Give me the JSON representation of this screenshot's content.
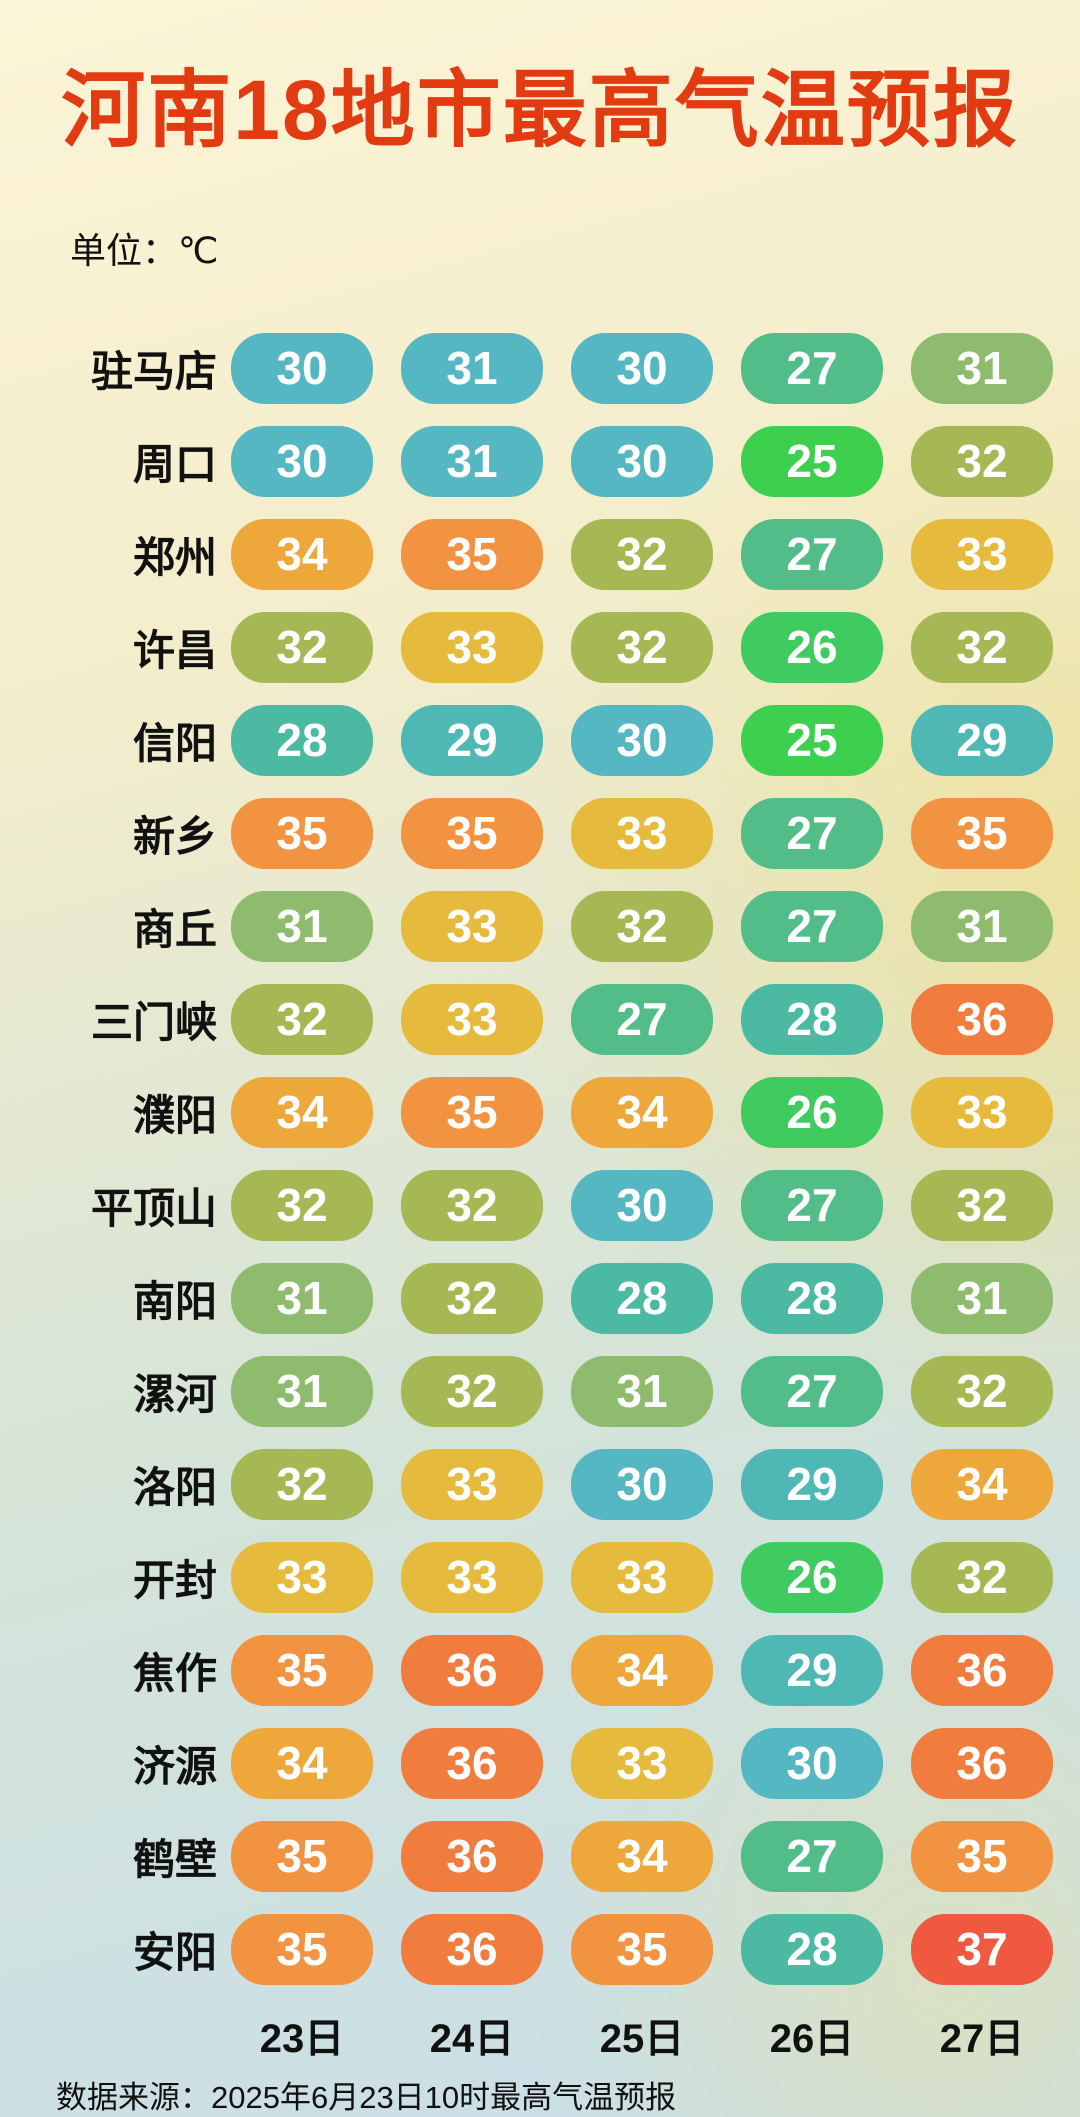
{
  "title": "河南18地市最高气温预报",
  "unit_label": "单位：℃",
  "source_label": "数据来源：2025年6月23日10时最高气温预报",
  "title_color": "#E23B12",
  "chart_data": {
    "type": "heatmap",
    "title": "河南18地市最高气温预报",
    "unit": "℃",
    "x": [
      "23日",
      "24日",
      "25日",
      "26日",
      "27日"
    ],
    "value_color_scale": {
      "25": "#3DD04E",
      "26": "#3FCB60",
      "27": "#52BD88",
      "28": "#4CBAA3",
      "29": "#4FB8B4",
      "30": "#55B7C1",
      "31": "#8EBB6D",
      "32": "#A5B854",
      "33": "#E6BA3C",
      "34": "#EEA73A",
      "35": "#F29341",
      "36": "#F07D3D",
      "37": "#EE5940"
    },
    "rows": [
      {
        "city": "驻马店",
        "values": [
          30,
          31,
          30,
          27,
          31
        ],
        "colors": [
          "#55B7C1",
          "#55B7C1",
          "#55B7C1",
          "#52BD88",
          "#8EBB6D"
        ]
      },
      {
        "city": "周口",
        "values": [
          30,
          31,
          30,
          25,
          32
        ],
        "colors": [
          "#55B7C1",
          "#55B7C1",
          "#55B7C1",
          "#3DD04E",
          "#A5B854"
        ]
      },
      {
        "city": "郑州",
        "values": [
          34,
          35,
          32,
          27,
          33
        ],
        "colors": [
          "#EEA73A",
          "#F29341",
          "#A5B854",
          "#52BD88",
          "#E6BA3C"
        ]
      },
      {
        "city": "许昌",
        "values": [
          32,
          33,
          32,
          26,
          32
        ],
        "colors": [
          "#A5B854",
          "#E6BA3C",
          "#A5B854",
          "#3FCB60",
          "#A5B854"
        ]
      },
      {
        "city": "信阳",
        "values": [
          28,
          29,
          30,
          25,
          29
        ],
        "colors": [
          "#4CBAA3",
          "#4FB8B4",
          "#55B7C1",
          "#3DD04E",
          "#4FB8B4"
        ]
      },
      {
        "city": "新乡",
        "values": [
          35,
          35,
          33,
          27,
          35
        ],
        "colors": [
          "#F29341",
          "#F29341",
          "#E6BA3C",
          "#52BD88",
          "#F29341"
        ]
      },
      {
        "city": "商丘",
        "values": [
          31,
          33,
          32,
          27,
          31
        ],
        "colors": [
          "#8EBB6D",
          "#E6BA3C",
          "#A5B854",
          "#52BD88",
          "#8EBB6D"
        ]
      },
      {
        "city": "三门峡",
        "values": [
          32,
          33,
          27,
          28,
          36
        ],
        "colors": [
          "#A5B854",
          "#E6BA3C",
          "#52BD88",
          "#4CBAA3",
          "#F07D3D"
        ]
      },
      {
        "city": "濮阳",
        "values": [
          34,
          35,
          34,
          26,
          33
        ],
        "colors": [
          "#EEA73A",
          "#F29341",
          "#EEA73A",
          "#3FCB60",
          "#E6BA3C"
        ]
      },
      {
        "city": "平顶山",
        "values": [
          32,
          32,
          30,
          27,
          32
        ],
        "colors": [
          "#A5B854",
          "#A5B854",
          "#55B7C1",
          "#52BD88",
          "#A5B854"
        ]
      },
      {
        "city": "南阳",
        "values": [
          31,
          32,
          28,
          28,
          31
        ],
        "colors": [
          "#8EBB6D",
          "#A5B854",
          "#4CBAA3",
          "#4CBAA3",
          "#8EBB6D"
        ]
      },
      {
        "city": "漯河",
        "values": [
          31,
          32,
          31,
          27,
          32
        ],
        "colors": [
          "#8EBB6D",
          "#A5B854",
          "#8EBB6D",
          "#52BD88",
          "#A5B854"
        ]
      },
      {
        "city": "洛阳",
        "values": [
          32,
          33,
          30,
          29,
          34
        ],
        "colors": [
          "#A5B854",
          "#E6BA3C",
          "#55B7C1",
          "#4FB8B4",
          "#EEA73A"
        ]
      },
      {
        "city": "开封",
        "values": [
          33,
          33,
          33,
          26,
          32
        ],
        "colors": [
          "#E6BA3C",
          "#E6BA3C",
          "#E6BA3C",
          "#3FCB60",
          "#A5B854"
        ]
      },
      {
        "city": "焦作",
        "values": [
          35,
          36,
          34,
          29,
          36
        ],
        "colors": [
          "#F29341",
          "#F07D3D",
          "#EEA73A",
          "#4FB8B4",
          "#F07D3D"
        ]
      },
      {
        "city": "济源",
        "values": [
          34,
          36,
          33,
          30,
          36
        ],
        "colors": [
          "#EEA73A",
          "#F07D3D",
          "#E6BA3C",
          "#55B7C1",
          "#F07D3D"
        ]
      },
      {
        "city": "鹤壁",
        "values": [
          35,
          36,
          34,
          27,
          35
        ],
        "colors": [
          "#F29341",
          "#F07D3D",
          "#EEA73A",
          "#52BD88",
          "#F29341"
        ]
      },
      {
        "city": "安阳",
        "values": [
          35,
          36,
          35,
          28,
          37
        ],
        "colors": [
          "#F29341",
          "#F07D3D",
          "#F29341",
          "#4CBAA3",
          "#EE5940"
        ]
      }
    ],
    "source": "数据来源：2025年6月23日10时最高气温预报",
    "legend_position": "none",
    "grid": false
  }
}
